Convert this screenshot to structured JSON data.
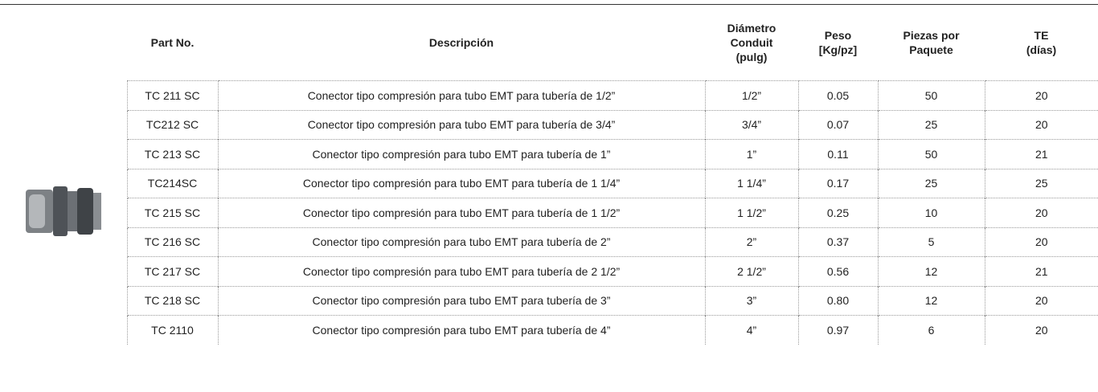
{
  "table": {
    "columns": [
      "Part No.",
      "Descripción",
      "Diámetro\nConduit\n(pulg)",
      "Peso\n[Kg/pz]",
      "Piezas por\nPaquete",
      "TE\n(días)"
    ],
    "rows": [
      [
        "TC 211 SC",
        "Conector tipo compresión para tubo EMT para tubería de 1/2”",
        "1/2”",
        "0.05",
        "50",
        "20"
      ],
      [
        "TC212 SC",
        "Conector tipo compresión para tubo EMT para tubería de 3/4”",
        "3/4”",
        "0.07",
        "25",
        "20"
      ],
      [
        "TC 213 SC",
        "Conector tipo compresión para tubo EMT para tubería de 1”",
        "1”",
        "0.11",
        "50",
        "21"
      ],
      [
        "TC214SC",
        "Conector tipo compresión para tubo EMT para tubería de 1 1/4”",
        "1 1/4”",
        "0.17",
        "25",
        "25"
      ],
      [
        "TC 215 SC",
        "Conector tipo compresión para tubo EMT para tubería de 1 1/2”",
        "1 1/2”",
        "0.25",
        "10",
        "20"
      ],
      [
        "TC 216 SC",
        "Conector tipo compresión para tubo EMT para tubería de 2”",
        "2”",
        "0.37",
        "5",
        "20"
      ],
      [
        "TC 217 SC",
        "Conector tipo compresión para tubo EMT para tubería de 2 1/2”",
        "2 1/2”",
        "0.56",
        "12",
        "21"
      ],
      [
        "TC 218 SC",
        "Conector tipo compresión para tubo EMT para tubería de 3”",
        "3”",
        "0.80",
        "12",
        "20"
      ],
      [
        "TC 2110",
        "Conector tipo compresión para tubo EMT para tubería de 4”",
        "4”",
        "0.97",
        "6",
        "20"
      ]
    ]
  }
}
